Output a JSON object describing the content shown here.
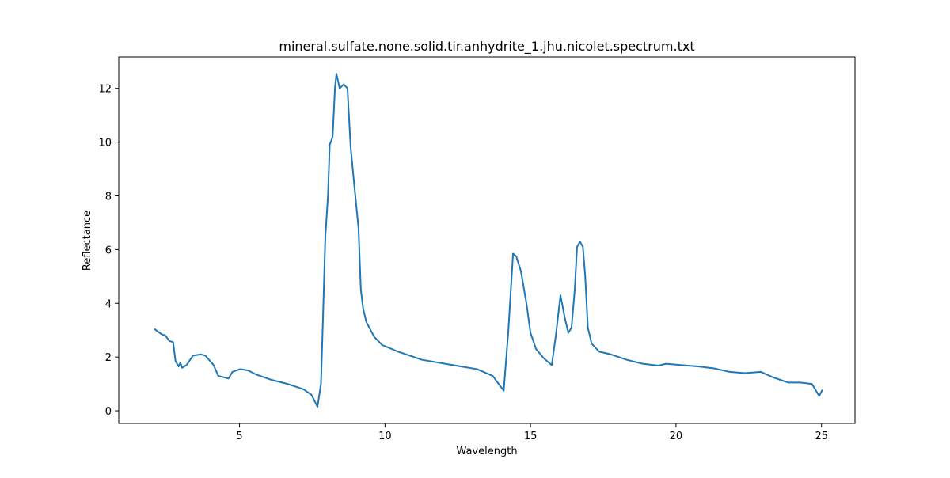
{
  "chart_data": {
    "type": "line",
    "title": "mineral.sulfate.none.solid.tir.anhydrite_1.jhu.nicolet.spectrum.txt",
    "x_label": "Wavelength",
    "y_label": "Reflectance",
    "x": [
      2.07,
      2.32,
      2.45,
      2.59,
      2.72,
      2.8,
      2.91,
      2.97,
      3.02,
      3.18,
      3.4,
      3.67,
      3.83,
      4.11,
      4.27,
      4.62,
      4.76,
      5.03,
      5.3,
      5.57,
      6.1,
      6.65,
      7.2,
      7.47,
      7.68,
      7.8,
      7.87,
      7.95,
      8.04,
      8.1,
      8.2,
      8.28,
      8.33,
      8.44,
      8.58,
      8.71,
      8.82,
      8.98,
      9.09,
      9.17,
      9.25,
      9.36,
      9.63,
      9.9,
      10.45,
      11.26,
      12.34,
      13.16,
      13.7,
      14.08,
      14.24,
      14.4,
      14.51,
      14.67,
      14.86,
      15.0,
      15.19,
      15.46,
      15.73,
      15.87,
      16.03,
      16.17,
      16.3,
      16.41,
      16.52,
      16.6,
      16.7,
      16.8,
      16.88,
      16.97,
      17.1,
      17.36,
      17.76,
      18.3,
      18.85,
      19.4,
      19.66,
      20.2,
      20.75,
      21.29,
      21.83,
      22.37,
      22.91,
      23.32,
      23.86,
      24.27,
      24.67,
      24.92,
      25.03
    ],
    "series": [
      {
        "name": "Reflectance",
        "color": "#1f77b4",
        "values": [
          3.05,
          2.85,
          2.8,
          2.6,
          2.55,
          1.85,
          1.65,
          1.8,
          1.6,
          1.7,
          2.05,
          2.1,
          2.05,
          1.7,
          1.3,
          1.2,
          1.45,
          1.55,
          1.5,
          1.35,
          1.15,
          1.0,
          0.8,
          0.6,
          0.15,
          1.0,
          3.5,
          6.5,
          8.0,
          9.9,
          10.2,
          12.0,
          12.55,
          12.0,
          12.15,
          12.0,
          9.8,
          8.0,
          6.8,
          4.5,
          3.8,
          3.3,
          2.75,
          2.45,
          2.2,
          1.9,
          1.7,
          1.55,
          1.3,
          0.75,
          3.0,
          5.85,
          5.75,
          5.2,
          4.0,
          2.9,
          2.3,
          1.95,
          1.7,
          2.8,
          4.3,
          3.5,
          2.9,
          3.1,
          4.5,
          6.1,
          6.3,
          6.1,
          5.0,
          3.1,
          2.5,
          2.2,
          2.1,
          1.9,
          1.75,
          1.68,
          1.75,
          1.7,
          1.65,
          1.58,
          1.45,
          1.4,
          1.45,
          1.25,
          1.05,
          1.05,
          1.0,
          0.55,
          0.78
        ]
      }
    ],
    "xlim": [
      0.85,
      26.15
    ],
    "ylim": [
      -0.47,
      13.17
    ],
    "xticks": [
      5,
      10,
      15,
      20,
      25
    ],
    "yticks": [
      0,
      2,
      4,
      6,
      8,
      10,
      12
    ]
  }
}
